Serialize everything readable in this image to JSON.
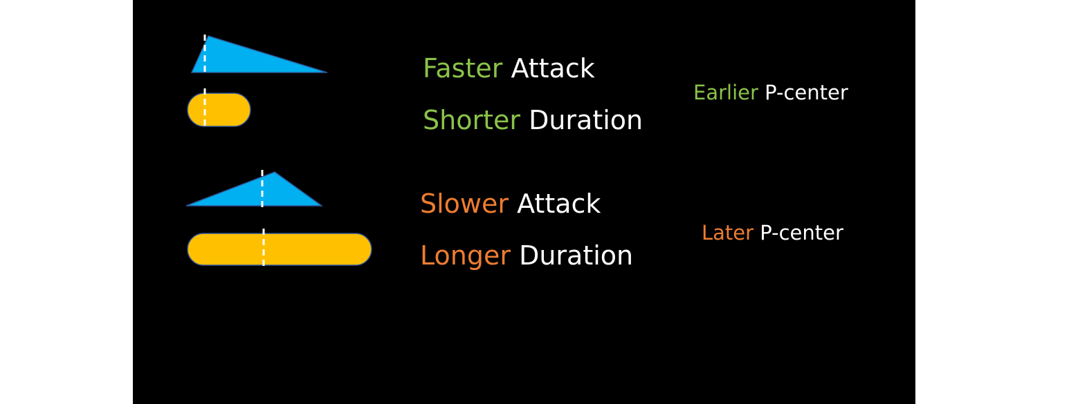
{
  "colors": {
    "background": "#000000",
    "envelope_fill": "#00b0f0",
    "duration_fill": "#ffc000",
    "shape_outline": "#2f5597",
    "marker": "#ffffff",
    "faster_accent": "#8bc34a",
    "slower_accent": "#ed7d31",
    "text": "#ffffff"
  },
  "rows": [
    {
      "attack": {
        "accent": "Faster",
        "rest": "Attack"
      },
      "duration": {
        "accent": "Shorter",
        "rest": "Duration"
      },
      "result": {
        "accent": "Earlier",
        "rest": "P-center"
      },
      "envelope_icon": "fast-attack-triangle",
      "duration_icon": "short-duration-pill",
      "marker_icon": "dashed-line-marker"
    },
    {
      "attack": {
        "accent": "Slower",
        "rest": "Attack"
      },
      "duration": {
        "accent": "Longer",
        "rest": "Duration"
      },
      "result": {
        "accent": "Later",
        "rest": "P-center"
      },
      "envelope_icon": "slow-attack-triangle",
      "duration_icon": "long-duration-pill",
      "marker_icon": "dashed-line-marker"
    }
  ]
}
